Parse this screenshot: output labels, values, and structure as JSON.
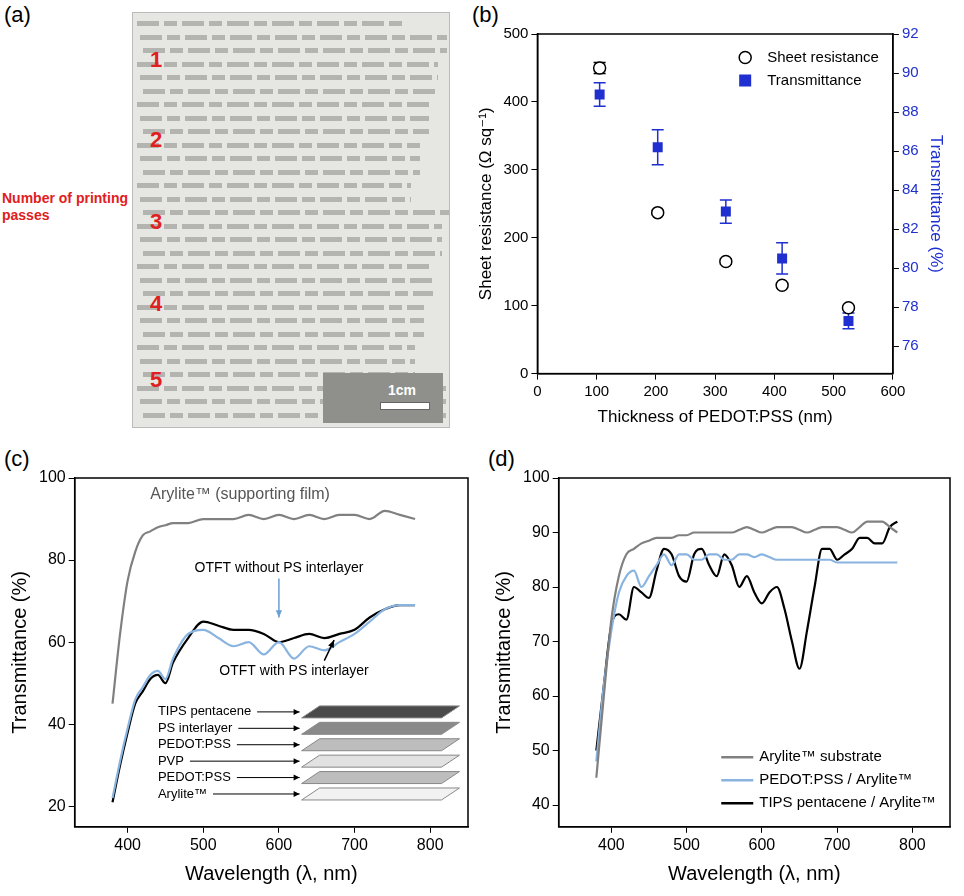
{
  "photo": {
    "title": "(a)",
    "pass_labels": [
      "1",
      "2",
      "3",
      "4",
      "5"
    ],
    "caption": "Number of printing passes",
    "scale_bar": "1cm"
  },
  "chart_data": [
    {
      "type": "scatter",
      "title": "(b)",
      "x_label": "Thickness of PEDOT:PSS (nm)",
      "y_label": "Sheet resistance (Ω sq⁻¹)",
      "y2_label": "Transmittance (%)",
      "xlim": [
        0,
        600
      ],
      "xticks": [
        0,
        100,
        200,
        300,
        400,
        500,
        600
      ],
      "ylim": [
        0,
        500
      ],
      "yticks": [
        0,
        100,
        200,
        300,
        400,
        500
      ],
      "y2lim": [
        74.6,
        92
      ],
      "y2ticks": [
        76,
        78,
        80,
        82,
        84,
        86,
        88,
        90,
        92
      ],
      "grid": false,
      "legend": "upper right",
      "x": [
        105,
        203,
        318,
        413,
        525
      ],
      "series": [
        {
          "name": "Sheet resistance",
          "color": "#000000",
          "marker": "hollow-circle",
          "values": [
            450,
            237,
            165,
            130,
            97
          ],
          "errors": [
            8,
            3,
            4,
            3,
            3
          ]
        },
        {
          "name": "Transmittance",
          "color": "#1f2fd0",
          "marker": "square",
          "axis": "y2",
          "values": [
            88.9,
            86.2,
            82.9,
            80.5,
            77.3
          ],
          "errors": [
            0.6,
            0.9,
            0.6,
            0.8,
            0.4
          ]
        }
      ]
    },
    {
      "type": "line",
      "title": "(c)",
      "x_label": "Wavelength (λ, nm)",
      "y_label": "Transmittance (%)",
      "xlim": [
        330,
        850
      ],
      "xticks": [
        400,
        500,
        600,
        700,
        800
      ],
      "ylim": [
        15,
        100
      ],
      "yticks": [
        20,
        40,
        60,
        80,
        100
      ],
      "grid": false,
      "x": [
        380,
        390,
        400,
        410,
        420,
        430,
        440,
        450,
        460,
        480,
        500,
        520,
        540,
        560,
        580,
        600,
        620,
        640,
        660,
        680,
        700,
        720,
        740,
        760,
        780
      ],
      "series": [
        {
          "name": "Arylite™ (supporting film)",
          "color": "#808080",
          "line_style": "solid",
          "values": [
            45,
            62,
            75,
            82,
            86,
            87,
            88,
            88.5,
            89,
            89,
            90,
            90,
            90,
            91,
            90,
            91,
            90,
            91,
            90,
            91,
            91,
            90,
            92,
            91,
            90
          ]
        },
        {
          "name": "OTFT without PS interlayer",
          "color": "#8ab4e0",
          "line_style": "solid",
          "values": [
            22,
            31,
            39,
            46,
            49,
            52,
            53,
            51,
            56,
            62,
            63,
            61,
            59,
            60,
            57,
            60,
            56,
            59,
            58,
            60,
            62,
            65,
            68,
            69,
            69
          ]
        },
        {
          "name": "OTFT with PS interlayer",
          "color": "#000000",
          "line_style": "solid",
          "values": [
            21,
            30,
            38,
            45,
            48,
            51,
            52,
            50,
            55,
            61,
            65,
            64,
            63,
            63,
            62,
            60,
            61,
            62,
            61,
            62,
            63,
            66,
            68,
            69,
            69
          ]
        }
      ],
      "inset_labels": [
        "TIPS pentacene",
        "PS interlayer",
        "PEDOT:PSS",
        "PVP",
        "PEDOT:PSS",
        "Arylite™"
      ]
    },
    {
      "type": "line",
      "title": "(d)",
      "x_label": "Wavelength (λ, nm)",
      "y_label": "Transmittance (%)",
      "xlim": [
        330,
        850
      ],
      "xticks": [
        400,
        500,
        600,
        700,
        800
      ],
      "ylim": [
        36,
        100
      ],
      "yticks": [
        40,
        50,
        60,
        70,
        80,
        90,
        100
      ],
      "grid": false,
      "legend": "lower right",
      "x": [
        380,
        390,
        400,
        410,
        420,
        430,
        440,
        450,
        460,
        470,
        480,
        490,
        500,
        510,
        520,
        530,
        540,
        550,
        560,
        570,
        580,
        590,
        600,
        610,
        620,
        630,
        640,
        650,
        660,
        670,
        680,
        690,
        700,
        710,
        720,
        730,
        740,
        750,
        760,
        770,
        780
      ],
      "series": [
        {
          "name": "Arylite™ substrate",
          "color": "#808080",
          "line_style": "solid",
          "values": [
            45,
            60,
            74,
            82,
            86,
            87,
            88,
            88.5,
            89,
            89,
            89,
            89.5,
            89.5,
            90,
            90,
            90,
            90,
            90,
            90,
            90.5,
            91,
            90.5,
            90,
            90.5,
            91,
            91,
            91,
            90.5,
            90,
            90.5,
            91,
            91,
            91,
            90.5,
            90,
            91,
            92,
            92,
            92,
            91,
            90
          ]
        },
        {
          "name": "PEDOT:PSS / Arylite™",
          "color": "#8ab4e0",
          "line_style": "solid",
          "values": [
            48,
            62,
            72,
            79,
            82,
            83,
            80,
            82,
            84,
            86,
            84,
            86,
            86,
            85,
            85,
            86,
            86,
            85,
            85,
            86,
            86,
            85.5,
            86,
            85.5,
            85,
            85,
            85,
            85,
            85,
            85,
            85,
            85,
            84.5,
            84.5,
            84.5,
            84.5,
            84.5,
            84.5,
            84.5,
            84.5,
            84.5
          ]
        },
        {
          "name": "TIPS pentacene / Arylite™",
          "color": "#000000",
          "line_style": "solid",
          "values": [
            50,
            62,
            73,
            75,
            74,
            80,
            79,
            78,
            83,
            87,
            86,
            82,
            81,
            86,
            87,
            84,
            82,
            86,
            84,
            80,
            82,
            79,
            77,
            79,
            80,
            76,
            70,
            65,
            72,
            80,
            87,
            87,
            85,
            86,
            87,
            89,
            89,
            88,
            88,
            91,
            92
          ]
        }
      ]
    }
  ]
}
